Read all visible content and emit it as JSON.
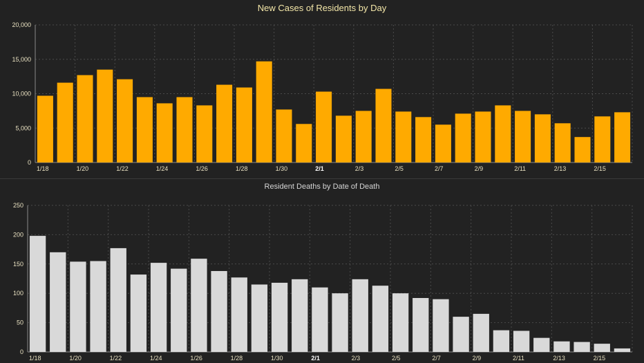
{
  "chart_data": [
    {
      "type": "bar",
      "title": "New Cases of Residents by Day",
      "xlabel": "",
      "ylabel": "",
      "ylim": [
        0,
        20000
      ],
      "yticks": [
        0,
        5000,
        10000,
        15000,
        20000
      ],
      "ytick_labels": [
        "0",
        "5,000",
        "10,000",
        "15,000",
        "20,000"
      ],
      "categories": [
        "1/18",
        "1/19",
        "1/20",
        "1/21",
        "1/22",
        "1/23",
        "1/24",
        "1/25",
        "1/26",
        "1/27",
        "1/28",
        "1/29",
        "1/30",
        "1/31",
        "2/1",
        "2/2",
        "2/3",
        "2/4",
        "2/5",
        "2/6",
        "2/7",
        "2/8",
        "2/9",
        "2/10",
        "2/11",
        "2/12",
        "2/13",
        "2/14",
        "2/15",
        "2/16"
      ],
      "xtick_labels": [
        "1/18",
        "",
        "1/20",
        "",
        "1/22",
        "",
        "1/24",
        "",
        "1/26",
        "",
        "1/28",
        "",
        "1/30",
        "",
        "2/1",
        "",
        "2/3",
        "",
        "2/5",
        "",
        "2/7",
        "",
        "2/9",
        "",
        "2/11",
        "",
        "2/13",
        "",
        "2/15",
        ""
      ],
      "bold_ticks": [
        "2/1"
      ],
      "values": [
        9700,
        11600,
        12700,
        13500,
        12100,
        9500,
        8600,
        9500,
        8300,
        11300,
        10900,
        14700,
        7700,
        5600,
        10300,
        6800,
        7500,
        10700,
        7400,
        6600,
        5500,
        7100,
        7400,
        8300,
        7500,
        7000,
        5700,
        3700,
        6700,
        7300
      ],
      "bar_color": "#ffaa00",
      "grid": true
    },
    {
      "type": "bar",
      "title": "Resident Deaths by Date of Death",
      "xlabel": "",
      "ylabel": "",
      "ylim": [
        0,
        250
      ],
      "yticks": [
        0,
        50,
        100,
        150,
        200,
        250
      ],
      "ytick_labels": [
        "0",
        "50",
        "100",
        "150",
        "200",
        "250"
      ],
      "categories": [
        "1/18",
        "1/19",
        "1/20",
        "1/21",
        "1/22",
        "1/23",
        "1/24",
        "1/25",
        "1/26",
        "1/27",
        "1/28",
        "1/29",
        "1/30",
        "1/31",
        "2/1",
        "2/2",
        "2/3",
        "2/4",
        "2/5",
        "2/6",
        "2/7",
        "2/8",
        "2/9",
        "2/10",
        "2/11",
        "2/12",
        "2/13",
        "2/14",
        "2/15",
        "2/16"
      ],
      "xtick_labels": [
        "1/18",
        "",
        "1/20",
        "",
        "1/22",
        "",
        "1/24",
        "",
        "1/26",
        "",
        "1/28",
        "",
        "1/30",
        "",
        "2/1",
        "",
        "2/3",
        "",
        "2/5",
        "",
        "2/7",
        "",
        "2/9",
        "",
        "2/11",
        "",
        "2/13",
        "",
        "2/15",
        ""
      ],
      "bold_ticks": [
        "2/1"
      ],
      "values": [
        198,
        170,
        154,
        155,
        177,
        132,
        152,
        142,
        159,
        138,
        127,
        115,
        118,
        124,
        110,
        100,
        124,
        113,
        100,
        92,
        90,
        60,
        65,
        37,
        36,
        24,
        18,
        17,
        14,
        6
      ],
      "bar_color": "#d9d9d9",
      "grid": true
    }
  ]
}
